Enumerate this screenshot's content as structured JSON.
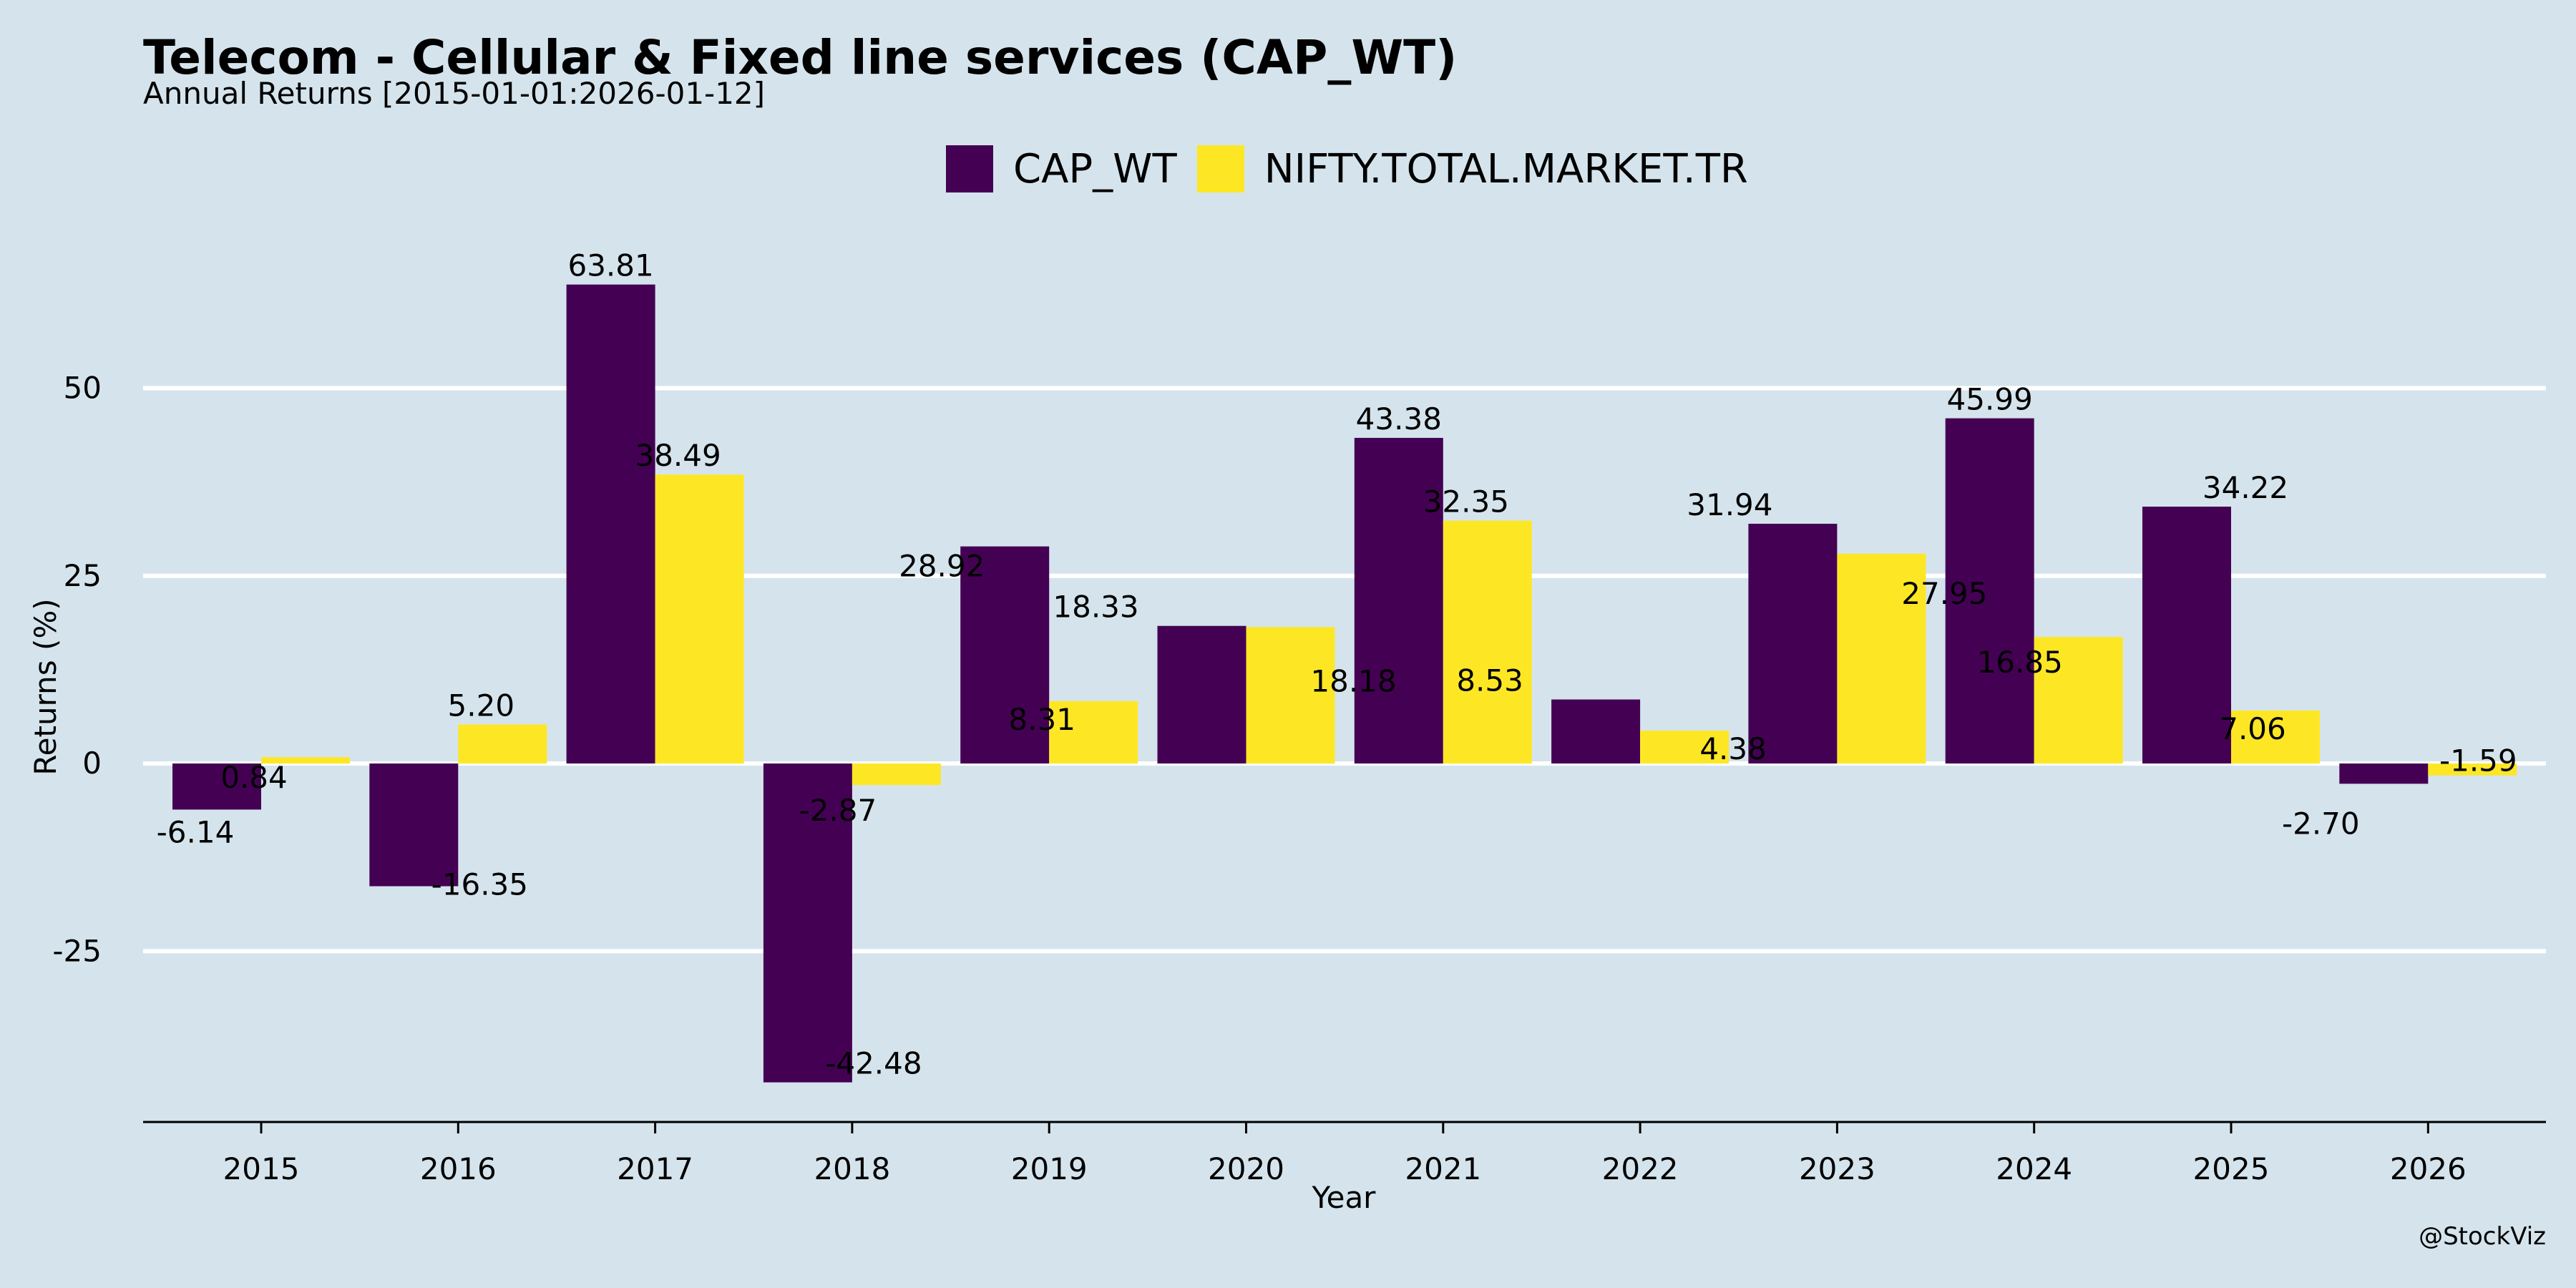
{
  "chart_data": {
    "type": "bar",
    "title": "Telecom - Cellular & Fixed line services (CAP_WT)",
    "subtitle": "Annual Returns [2015-01-01:2026-01-12]",
    "xlabel": "Year",
    "ylabel": "Returns (%)",
    "categories": [
      "2015",
      "2016",
      "2017",
      "2018",
      "2019",
      "2020",
      "2021",
      "2022",
      "2023",
      "2024",
      "2025",
      "2026"
    ],
    "series": [
      {
        "name": "CAP_WT",
        "color": "#440154",
        "values": [
          -6.14,
          -16.35,
          63.81,
          -42.48,
          28.92,
          18.33,
          43.38,
          8.53,
          31.94,
          45.99,
          34.22,
          -2.7
        ],
        "labels": [
          "-6.14",
          "-16.35",
          "63.81",
          "-42.48",
          "28.92",
          "18.33",
          "43.38",
          "8.53",
          "31.94",
          "45.99",
          "34.22",
          "-2.70"
        ]
      },
      {
        "name": "NIFTY.TOTAL.MARKET.TR",
        "color": "#fde725",
        "values": [
          0.84,
          5.2,
          38.49,
          -2.87,
          8.31,
          18.18,
          32.35,
          4.38,
          27.95,
          16.85,
          7.06,
          -1.59
        ],
        "labels": [
          "0.84",
          "5.20",
          "38.49",
          "-2.87",
          "8.31",
          "18.18",
          "32.35",
          "4.38",
          "27.95",
          "16.85",
          "7.06",
          "-1.59"
        ]
      }
    ],
    "yticks": [
      -25,
      0,
      25,
      50
    ],
    "ytick_labels": [
      "-25",
      "0",
      "25",
      "50"
    ],
    "ylim": [
      -48,
      72
    ],
    "grid": true,
    "legend_position": "top-center"
  },
  "credit": "@StockViz"
}
